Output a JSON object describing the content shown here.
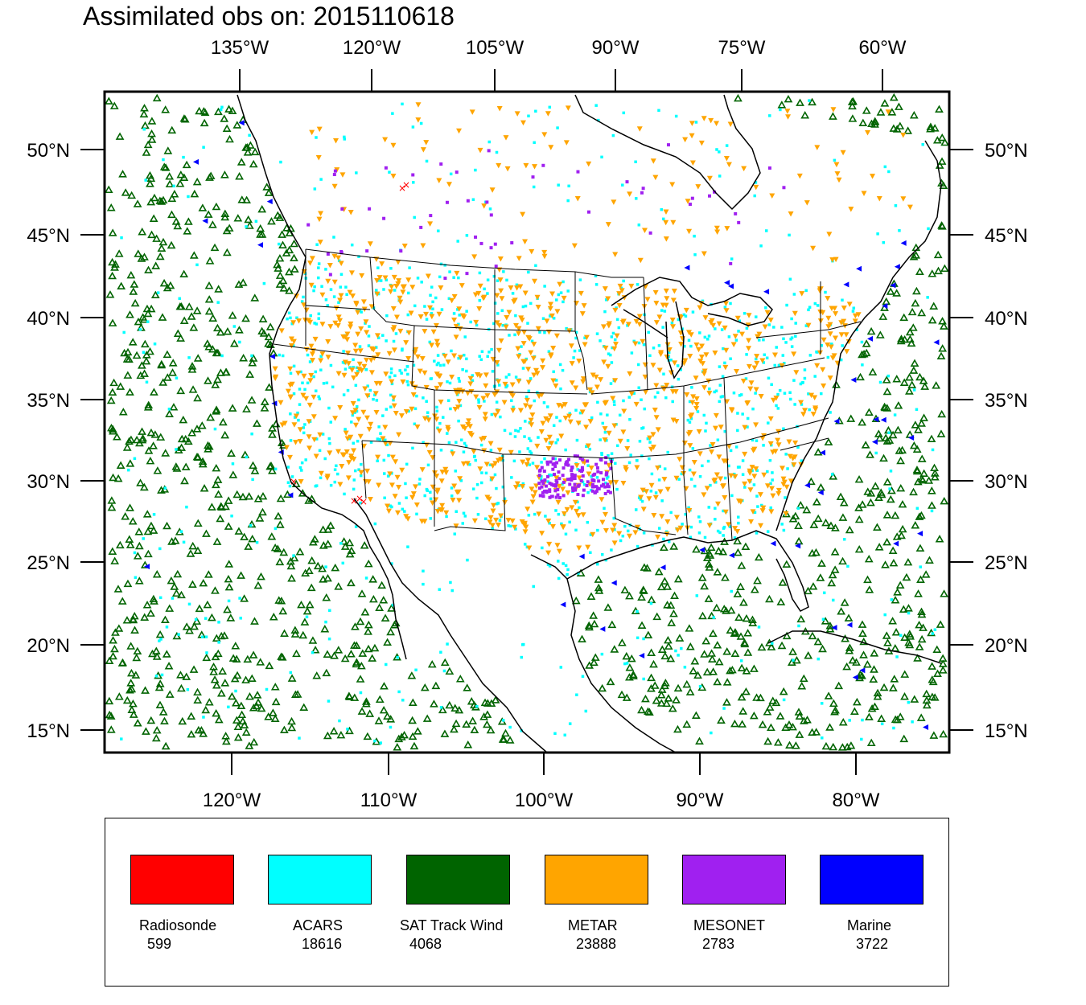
{
  "title": "Assimilated obs on: 2015110618",
  "top_longitude_labels": [
    "135°W",
    "120°W",
    "105°W",
    "90°W",
    "75°W",
    "60°W"
  ],
  "bottom_longitude_labels": [
    "120°W",
    "110°W",
    "100°W",
    "90°W",
    "80°W"
  ],
  "latitude_labels": [
    "50°N",
    "45°N",
    "40°N",
    "35°N",
    "30°N",
    "25°N",
    "20°N",
    "15°N"
  ],
  "colors": {
    "radiosonde": "#ff0000",
    "acars": "#00ffff",
    "sat_track_wind": "#006400",
    "metar": "#ffa500",
    "mesonet": "#a020f0",
    "marine": "#0000ff",
    "coastline": "#000000"
  },
  "legend": [
    {
      "name": "Radiosonde",
      "count": "599",
      "color": "#ff0000"
    },
    {
      "name": "ACARS",
      "count": "18616",
      "color": "#00ffff"
    },
    {
      "name": "SAT Track Wind",
      "count": "4068",
      "color": "#006400"
    },
    {
      "name": "METAR",
      "count": "23888",
      "color": "#ffa500"
    },
    {
      "name": "MESONET",
      "count": "2783",
      "color": "#a020f0"
    },
    {
      "name": "Marine",
      "count": "3722",
      "color": "#0000ff"
    }
  ]
}
